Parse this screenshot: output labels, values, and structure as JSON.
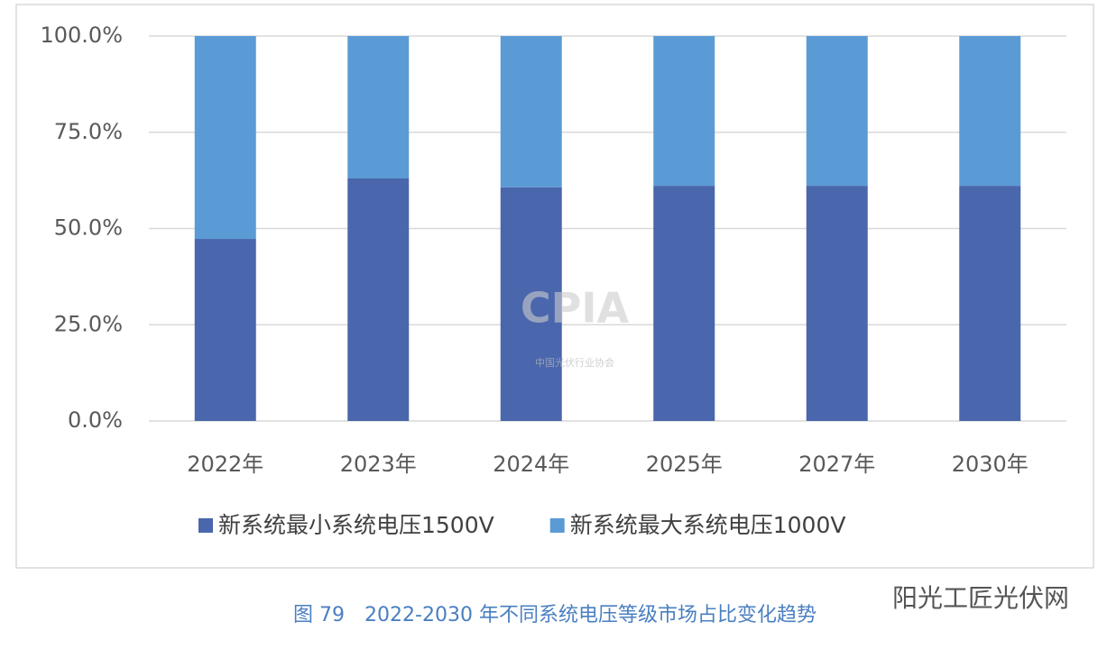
{
  "chart_data": {
    "type": "stacked_bar",
    "categories": [
      "2022年",
      "2023年",
      "2024年",
      "2025年",
      "2027年",
      "2030年"
    ],
    "series": [
      {
        "name": "新系统最小系统电压1500V",
        "color": "#4a66ac",
        "values": [
          47.3,
          63.0,
          60.7,
          61.1,
          61.1,
          61.1
        ]
      },
      {
        "name": "新系统最大系统电压1000V",
        "color": "#5b9bd5",
        "values": [
          52.7,
          37.0,
          39.3,
          38.9,
          38.9,
          38.9
        ]
      }
    ],
    "ylim": [
      0,
      100
    ],
    "yticks": [
      {
        "value": 0,
        "label": "0.0%"
      },
      {
        "value": 25,
        "label": "25.0%"
      },
      {
        "value": 50,
        "label": "50.0%"
      },
      {
        "value": 75,
        "label": "75.0%"
      },
      {
        "value": 100,
        "label": "100.0%"
      }
    ],
    "grid": true,
    "legend": "bottom",
    "caption": "图 79　2022-2030 年不同系统电压等级市场占比变化趋势",
    "watermark": "CPIA",
    "watermark_subtitle": "中国光伏行业协会",
    "source_mark": "阳光工匠光伏网"
  }
}
